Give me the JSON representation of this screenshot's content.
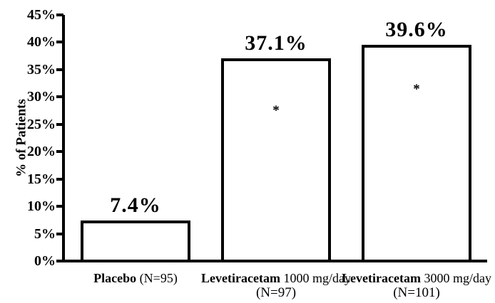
{
  "chart_data": {
    "type": "bar",
    "title": "",
    "xlabel": "",
    "ylabel": "% of Patients",
    "ylim": [
      0,
      45
    ],
    "ytick_step": 5,
    "ytick_labels": [
      "0%",
      "5%",
      "10%",
      "15%",
      "20%",
      "25%",
      "30%",
      "35%",
      "40%",
      "45%"
    ],
    "grid": false,
    "legend": "none",
    "background_color": "#ffffff",
    "bar_fill_color": "#ffffff",
    "bar_border_color": "#000000",
    "categories": [
      {
        "line1_bold": "Placebo",
        "line1_rest": " (N=95)",
        "line2": ""
      },
      {
        "line1_bold": "Levetiracetam",
        "line1_rest": " 1000 mg/day",
        "line2": "(N=97)"
      },
      {
        "line1_bold": "Levetiracetam",
        "line1_rest": " 3000 mg/day",
        "line2": "(N=101)"
      }
    ],
    "values": [
      7.4,
      37.1,
      39.6
    ],
    "value_labels": [
      "7.4%",
      "37.1%",
      "39.6%"
    ],
    "annotations": [
      {
        "bar_index": 1,
        "text": "*",
        "y_value": 27.5
      },
      {
        "bar_index": 2,
        "text": "*",
        "y_value": 31.4
      }
    ]
  }
}
